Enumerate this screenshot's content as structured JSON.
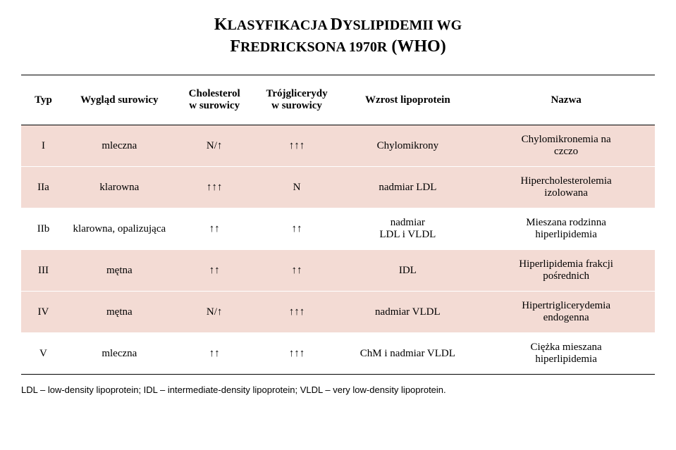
{
  "title_line1_caps": "K",
  "title_line1_rest": "LASYFIKACJA ",
  "title_line1_caps2": "D",
  "title_line1_rest2": "YSLIPIDEMII WG",
  "title_line2_caps": "F",
  "title_line2_rest": "REDRICKSONA 1970",
  "title_line2_small": "R",
  "title_line2_end": " (WHO)",
  "columns": {
    "c1": "Typ",
    "c2": "Wygląd surowicy",
    "c3": "Cholesterol\nw surowicy",
    "c4": "Trójglicerydy\nw surowicy",
    "c5": "Wzrost lipoprotein",
    "c6": "Nazwa"
  },
  "rows": [
    {
      "typ": "I",
      "wyglad": "mleczna",
      "chol": "N/↑",
      "tg": "↑↑↑",
      "wzrost": "Chylomikrony",
      "nazwa": "Chylomikronemia na\nczczo"
    },
    {
      "typ": "IIa",
      "wyglad": "klarowna",
      "chol": "↑↑↑",
      "tg": "N",
      "wzrost": "nadmiar LDL",
      "nazwa": "Hipercholesterolemia\nizolowana"
    },
    {
      "typ": "IIb",
      "wyglad": "klarowna, opalizująca",
      "chol": "↑↑",
      "tg": "↑↑",
      "wzrost": "nadmiar\nLDL i VLDL",
      "nazwa": "Mieszana rodzinna\nhiperlipidemia"
    },
    {
      "typ": "III",
      "wyglad": "mętna",
      "chol": "↑↑",
      "tg": "↑↑",
      "wzrost": "IDL",
      "nazwa": "Hiperlipidemia frakcji\npośrednich"
    },
    {
      "typ": "IV",
      "wyglad": "mętna",
      "chol": "N/↑",
      "tg": "↑↑↑",
      "wzrost": "nadmiar VLDL",
      "nazwa": "Hipertriglicerydemia\nendogenna"
    },
    {
      "typ": "V",
      "wyglad": "mleczna",
      "chol": "↑↑",
      "tg": "↑↑↑",
      "wzrost": "ChM i nadmiar VLDL",
      "nazwa": "Ciężka mieszana\nhiperlipidemia"
    }
  ],
  "footnote": "LDL – low-density lipoprotein; IDL – intermediate-density lipoprotein; VLDL – very low-density lipoprotein.",
  "colors": {
    "row_shade": "#f3dbd4",
    "background": "#ffffff",
    "border": "#000000"
  }
}
